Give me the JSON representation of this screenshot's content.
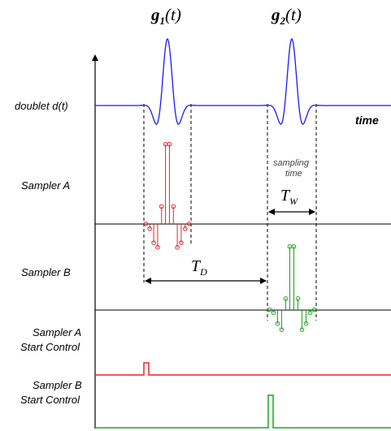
{
  "pulses": {
    "g1": {
      "main": "g",
      "sub": "1",
      "arg": "(t)"
    },
    "g2": {
      "main": "g",
      "sub": "2",
      "arg": "(t)"
    }
  },
  "labels": {
    "doublet": "doublet d(t)",
    "time": "time",
    "sampler_a": "Sampler A",
    "sampler_b": "Sampler B",
    "sampler_a_start_1": "Sampler A",
    "sampler_a_start_2": "Start Control",
    "sampler_b_start_1": "Sampler B",
    "sampler_b_start_2": "Start Control",
    "sampling_1": "sampling",
    "sampling_2": "time"
  },
  "intervals": {
    "tw": {
      "main": "T",
      "sub": "W"
    },
    "td": {
      "main": "T",
      "sub": "D"
    }
  },
  "colors": {
    "doublet": "#1a1aff",
    "sampler_a": "#e8232a",
    "sampler_b": "#1aa51a",
    "axis": "#000000"
  }
}
